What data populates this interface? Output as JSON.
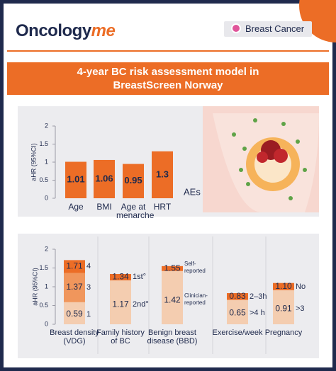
{
  "header": {
    "brand": "Oncology",
    "brand_accent": "me",
    "tag": "Breast Cancer"
  },
  "title": {
    "line1": "4-year BC risk assessment model in",
    "line2": "BreastScreen Norway"
  },
  "chart_data": [
    {
      "type": "bar",
      "y_label": "aHR (95%CI)",
      "annotation": "AEs",
      "categories": [
        "Age",
        "BMI",
        "Age at menarche",
        "HRT"
      ],
      "values": [
        1.01,
        1.06,
        0.95,
        1.3
      ],
      "color": "#ec6d26",
      "ylim": [
        0,
        2
      ],
      "yticks": [
        0,
        0.5,
        1,
        1.5,
        2
      ]
    },
    {
      "type": "overlaid_bar",
      "y_label": "aHR (95%CI)",
      "ylim": [
        0,
        2
      ],
      "yticks": [
        0,
        0.5,
        1,
        1.5,
        2
      ],
      "groups": [
        {
          "name": "Breast density (VDG)",
          "values": [
            0.59,
            1.37,
            1.71
          ],
          "levels": [
            "1",
            "3",
            "4"
          ],
          "colors": [
            "#f4cdb0",
            "#f0965c",
            "#ec6d26"
          ]
        },
        {
          "name": "Family history of BC",
          "values": [
            1.17,
            1.34
          ],
          "levels": [
            "2nd°",
            "1st°"
          ],
          "colors": [
            "#f4cdb0",
            "#ec6d26"
          ]
        },
        {
          "name": "Benign breast disease (BBD)",
          "values": [
            1.42,
            1.55
          ],
          "levels": [
            "Clinician-reported",
            "Self-reported"
          ],
          "colors": [
            "#f4cdb0",
            "#ec6d26"
          ]
        },
        {
          "name": "Exercise/week",
          "values": [
            0.65,
            0.83
          ],
          "levels": [
            ">4 h",
            "2–3h"
          ],
          "colors": [
            "#f4cdb0",
            "#ec6d26"
          ]
        },
        {
          "name": "Pregnancy",
          "values": [
            0.91,
            1.1
          ],
          "value_labels": [
            "0.91",
            "1.10"
          ],
          "levels": [
            ">3",
            "No"
          ],
          "colors": [
            "#f4cdb0",
            "#ec6d26"
          ]
        }
      ]
    }
  ]
}
